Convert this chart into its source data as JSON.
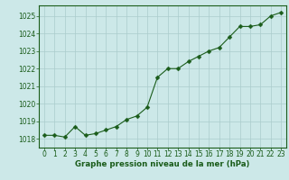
{
  "x": [
    0,
    1,
    2,
    3,
    4,
    5,
    6,
    7,
    8,
    9,
    10,
    11,
    12,
    13,
    14,
    15,
    16,
    17,
    18,
    19,
    20,
    21,
    22,
    23
  ],
  "y": [
    1018.2,
    1018.2,
    1018.1,
    1018.7,
    1018.2,
    1018.3,
    1018.5,
    1018.7,
    1019.1,
    1019.3,
    1019.8,
    1021.5,
    1022.0,
    1022.0,
    1022.4,
    1022.7,
    1023.0,
    1023.2,
    1023.8,
    1024.4,
    1024.4,
    1024.5,
    1025.0,
    1025.2
  ],
  "line_color": "#1a5c1a",
  "marker": "D",
  "marker_size": 2.5,
  "bg_color": "#cce8e8",
  "grid_color": "#aacccc",
  "xlabel": "Graphe pression niveau de la mer (hPa)",
  "xlabel_color": "#1a5c1a",
  "tick_color": "#1a5c1a",
  "spine_color": "#1a5c1a",
  "ylim": [
    1017.5,
    1025.6
  ],
  "yticks": [
    1018,
    1019,
    1020,
    1021,
    1022,
    1023,
    1024,
    1025
  ],
  "xticks": [
    0,
    1,
    2,
    3,
    4,
    5,
    6,
    7,
    8,
    9,
    10,
    11,
    12,
    13,
    14,
    15,
    16,
    17,
    18,
    19,
    20,
    21,
    22,
    23
  ],
  "tick_fontsize": 5.5,
  "xlabel_fontsize": 6.2,
  "linewidth": 0.8
}
